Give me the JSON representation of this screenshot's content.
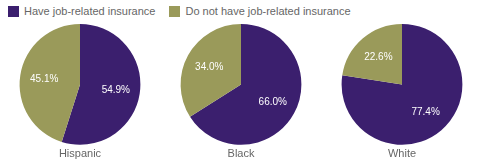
{
  "chart_data": [
    {
      "type": "pie",
      "title": "Hispanic",
      "categories": [
        "Have job-related insurance",
        "Do not have job-related insurance"
      ],
      "values": [
        54.9,
        45.1
      ],
      "value_labels": [
        "54.9%",
        "45.1%"
      ],
      "colors": [
        "#3b1f6e",
        "#9a9a5a"
      ],
      "data_labels": true,
      "legend": "upper left"
    },
    {
      "type": "pie",
      "title": "Black",
      "categories": [
        "Have job-related insurance",
        "Do not have job-related insurance"
      ],
      "values": [
        66.0,
        34.0
      ],
      "value_labels": [
        "66.0%",
        "34.0%"
      ],
      "colors": [
        "#3b1f6e",
        "#9a9a5a"
      ],
      "data_labels": true
    },
    {
      "type": "pie",
      "title": "White",
      "categories": [
        "Have job-related insurance",
        "Do not have job-related insurance"
      ],
      "values": [
        77.4,
        22.6
      ],
      "value_labels": [
        "77.4%",
        "22.6%"
      ],
      "colors": [
        "#3b1f6e",
        "#9a9a5a"
      ],
      "data_labels": true
    }
  ]
}
